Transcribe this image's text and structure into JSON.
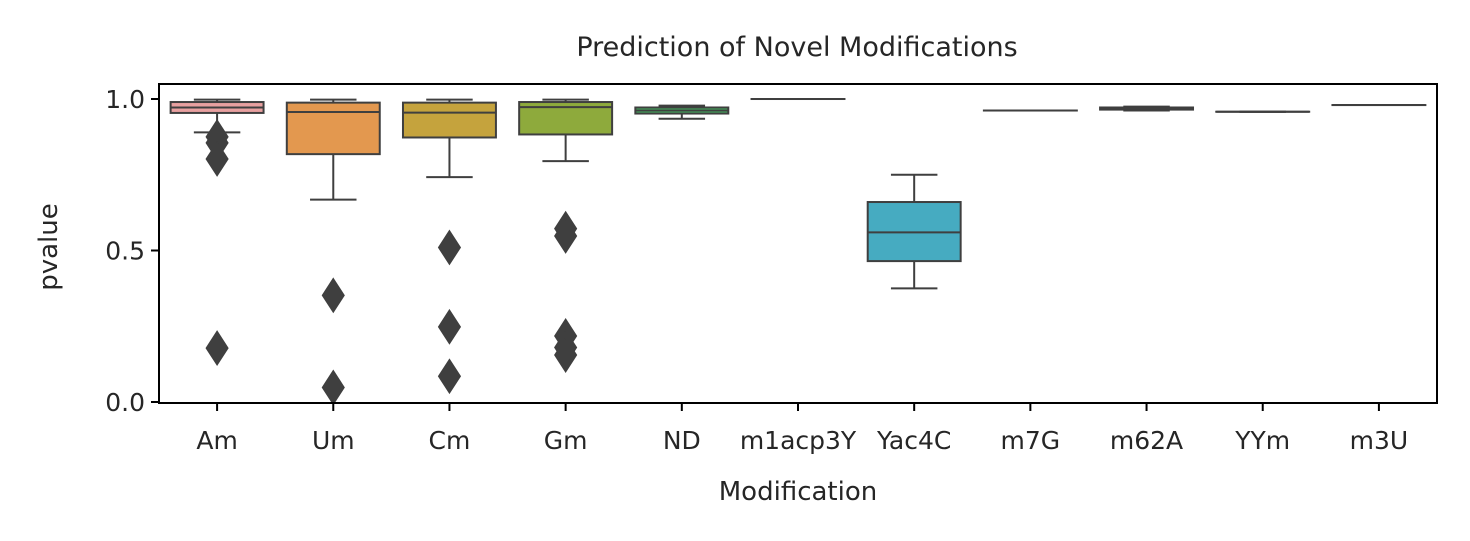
{
  "chart_data": {
    "type": "box",
    "title": "Prediction of Novel Modifications",
    "xlabel": "Modification",
    "ylabel": "pvalue",
    "ylim": [
      0.0,
      1.05
    ],
    "yticks": [
      "0.0",
      "0.5",
      "1.0"
    ],
    "grid": false,
    "legend": "none",
    "categories": [
      "Am",
      "Um",
      "Cm",
      "Gm",
      "ND",
      "m1acp3Y",
      "Yac4C",
      "m7G",
      "m62A",
      "YYm",
      "m3U"
    ],
    "boxes": [
      {
        "category": "Am",
        "whisker_low": 0.89,
        "q1": 0.954,
        "median": 0.972,
        "q3": 0.99,
        "whisker_high": 0.998,
        "outliers": [
          0.875,
          0.855,
          0.802,
          0.178
        ],
        "color": "#e8a0a0"
      },
      {
        "category": "Um",
        "whisker_low": 0.668,
        "q1": 0.818,
        "median": 0.957,
        "q3": 0.988,
        "whisker_high": 0.998,
        "outliers": [
          0.352,
          0.048
        ],
        "color": "#e3984f"
      },
      {
        "category": "Cm",
        "whisker_low": 0.742,
        "q1": 0.873,
        "median": 0.955,
        "q3": 0.988,
        "whisker_high": 0.998,
        "outliers": [
          0.51,
          0.248,
          0.085
        ],
        "color": "#c5a33d"
      },
      {
        "category": "Gm",
        "whisker_low": 0.795,
        "q1": 0.883,
        "median": 0.973,
        "q3": 0.99,
        "whisker_high": 0.998,
        "outliers": [
          0.572,
          0.548,
          0.218,
          0.18,
          0.155
        ],
        "color": "#8eaa3c"
      },
      {
        "category": "ND",
        "whisker_low": 0.935,
        "q1": 0.952,
        "median": 0.962,
        "q3": 0.972,
        "whisker_high": 0.978,
        "outliers": [],
        "color": "#45b061"
      },
      {
        "category": "m1acp3Y",
        "whisker_low": 1.0,
        "q1": 1.0,
        "median": 1.0,
        "q3": 1.0,
        "whisker_high": 1.0,
        "outliers": [],
        "color": "#3fab93"
      },
      {
        "category": "Yac4C",
        "whisker_low": 0.375,
        "q1": 0.465,
        "median": 0.56,
        "q3": 0.66,
        "whisker_high": 0.75,
        "outliers": [],
        "color": "#46abc1"
      },
      {
        "category": "m7G",
        "whisker_low": 0.962,
        "q1": 0.962,
        "median": 0.962,
        "q3": 0.962,
        "whisker_high": 0.962,
        "outliers": [],
        "color": "#4a9ee0"
      },
      {
        "category": "m62A",
        "whisker_low": 0.962,
        "q1": 0.965,
        "median": 0.968,
        "q3": 0.972,
        "whisker_high": 0.975,
        "outliers": [],
        "color": "#a18ee3"
      },
      {
        "category": "YYm",
        "whisker_low": 0.958,
        "q1": 0.958,
        "median": 0.958,
        "q3": 0.958,
        "whisker_high": 0.958,
        "outliers": [],
        "color": "#d98fd6"
      },
      {
        "category": "m3U",
        "whisker_low": 0.98,
        "q1": 0.98,
        "median": 0.98,
        "q3": 0.98,
        "whisker_high": 0.98,
        "outliers": [],
        "color": "#e794b8"
      }
    ]
  }
}
